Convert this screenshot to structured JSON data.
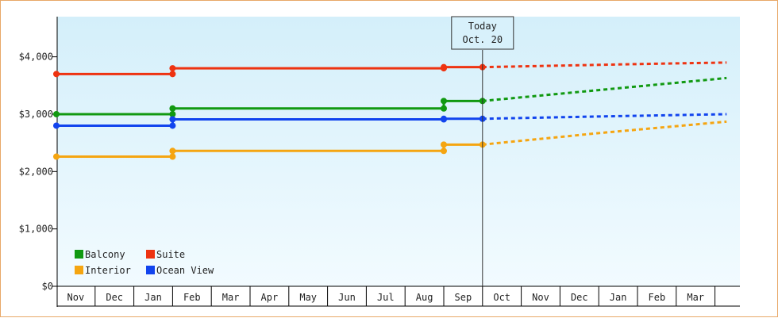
{
  "chart_data": {
    "type": "line",
    "title": "",
    "xlabel": "",
    "ylabel": "",
    "ylim": [
      0,
      4700
    ],
    "yticks": [
      "$0",
      "$1,000",
      "$2,000",
      "$3,000",
      "$4,000"
    ],
    "ytick_values": [
      0,
      1000,
      2000,
      3000,
      4000
    ],
    "months": [
      "Nov",
      "Dec",
      "Jan",
      "Feb",
      "Mar",
      "Apr",
      "May",
      "Jun",
      "Jul",
      "Aug",
      "Sep",
      "Oct",
      "Nov",
      "Dec",
      "Jan",
      "Feb",
      "Mar"
    ],
    "grid": "none",
    "background": [
      "#d4effa",
      "#f2fbff"
    ],
    "legend_position": "bottom-left",
    "today_marker": {
      "line1": "Today",
      "line2": "Oct. 20",
      "month_index": 11.0
    },
    "series": [
      {
        "name": "Balcony",
        "color": "#119911",
        "actual": [
          [
            0,
            3000
          ],
          [
            3,
            3000
          ],
          [
            3,
            3100
          ],
          [
            10,
            3100
          ],
          [
            10,
            3230
          ],
          [
            11,
            3230
          ]
        ],
        "forecast": [
          [
            11,
            3230
          ],
          [
            14,
            3420
          ],
          [
            17.3,
            3630
          ]
        ]
      },
      {
        "name": "Suite",
        "color": "#ee3311",
        "actual": [
          [
            0,
            3700
          ],
          [
            3,
            3700
          ],
          [
            3,
            3800
          ],
          [
            10,
            3800
          ],
          [
            10,
            3820
          ],
          [
            11,
            3820
          ]
        ],
        "forecast": [
          [
            11,
            3820
          ],
          [
            14,
            3860
          ],
          [
            15.5,
            3880
          ],
          [
            17.3,
            3900
          ]
        ]
      },
      {
        "name": "Interior",
        "color": "#f5a511",
        "actual": [
          [
            0,
            2260
          ],
          [
            3,
            2260
          ],
          [
            3,
            2360
          ],
          [
            10,
            2360
          ],
          [
            10,
            2470
          ],
          [
            11,
            2470
          ]
        ],
        "forecast": [
          [
            11,
            2470
          ],
          [
            14,
            2670
          ],
          [
            17.3,
            2870
          ]
        ]
      },
      {
        "name": "Ocean View",
        "color": "#1144ee",
        "actual": [
          [
            0,
            2800
          ],
          [
            3,
            2800
          ],
          [
            3,
            2910
          ],
          [
            10,
            2910
          ],
          [
            10,
            2920
          ],
          [
            11,
            2920
          ]
        ],
        "forecast": [
          [
            11,
            2920
          ],
          [
            14,
            2960
          ],
          [
            17.3,
            3000
          ]
        ]
      }
    ],
    "legend": [
      {
        "name": "Balcony",
        "color": "#119911"
      },
      {
        "name": "Suite",
        "color": "#ee3311"
      },
      {
        "name": "Interior",
        "color": "#f5a511"
      },
      {
        "name": "Ocean View",
        "color": "#1144ee"
      }
    ]
  }
}
